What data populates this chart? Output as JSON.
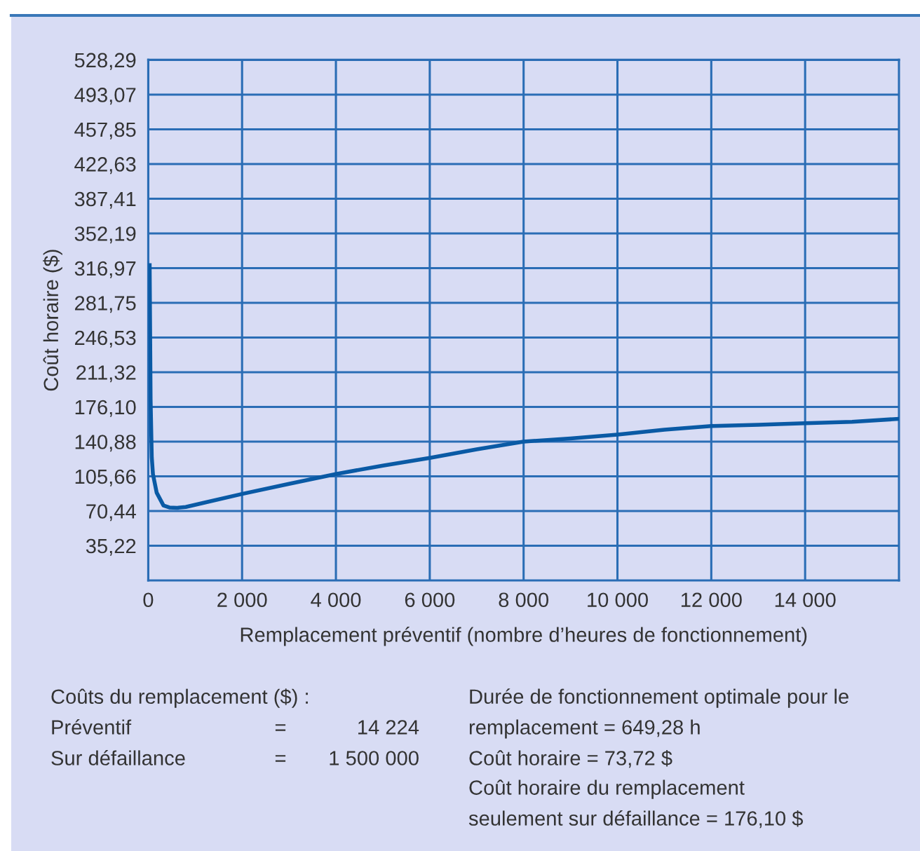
{
  "chart_data": {
    "type": "line",
    "xlabel": "Remplacement préventif (nombre d’heures de fonctionnement)",
    "ylabel": "Coût horaire ($)",
    "x": [
      30,
      50,
      75,
      100,
      180,
      325,
      450,
      620,
      800,
      1200,
      2000,
      3000,
      4000,
      5000,
      6000,
      7000,
      8000,
      9000,
      10000,
      11000,
      12000,
      13000,
      14000,
      15000,
      16000
    ],
    "series": [
      {
        "color": "#0a5aa5",
        "values": [
          320,
          184,
          125,
          108,
          89,
          76,
          74,
          73.7,
          74.5,
          79,
          87.8,
          98,
          108,
          116.5,
          124.3,
          133,
          140.9,
          144,
          148,
          153,
          156.7,
          158,
          159.5,
          161,
          164
        ]
      }
    ],
    "xlim": [
      0,
      16000
    ],
    "xticks": [
      0,
      {
        "value": 2000,
        "label": "2 000"
      },
      {
        "value": 4000,
        "label": "4 000"
      },
      {
        "value": 6000,
        "label": "6 000"
      },
      {
        "value": 8000,
        "label": "8 000"
      },
      {
        "value": 10000,
        "label": "10 000"
      },
      {
        "value": 12000,
        "label": "12 000"
      },
      {
        "value": 14000,
        "label": "14 000"
      }
    ],
    "ylim": [
      0,
      528.29
    ],
    "yticks": [
      {
        "value": 35.22,
        "label": "35,22"
      },
      {
        "value": 70.44,
        "label": "70,44"
      },
      {
        "value": 105.66,
        "label": "105,66"
      },
      {
        "value": 140.88,
        "label": "140,88"
      },
      {
        "value": 176.1,
        "label": "176,10"
      },
      {
        "value": 211.32,
        "label": "211,32"
      },
      {
        "value": 246.53,
        "label": "246,53"
      },
      {
        "value": 281.75,
        "label": "281,75"
      },
      {
        "value": 316.97,
        "label": "316,97"
      },
      {
        "value": 352.19,
        "label": "352,19"
      },
      {
        "value": 387.41,
        "label": "387,41"
      },
      {
        "value": 422.63,
        "label": "422,63"
      },
      {
        "value": 457.85,
        "label": "457,85"
      },
      {
        "value": 493.07,
        "label": "493,07"
      },
      {
        "value": 528.29,
        "label": "528,29"
      }
    ],
    "grid": true,
    "line_style": "solid",
    "annotations": [
      "Coûts du remplacement ($) :",
      "Préventif",
      "=",
      "14 224",
      "Sur défaillance",
      "=",
      "1 500 000",
      "Durée de fonctionnement optimale pour le",
      "remplacement = 649,28 h",
      "Coût horaire = 73,72 $",
      "Coût horaire du remplacement",
      "seulement sur défaillance = 176,10 $"
    ]
  }
}
